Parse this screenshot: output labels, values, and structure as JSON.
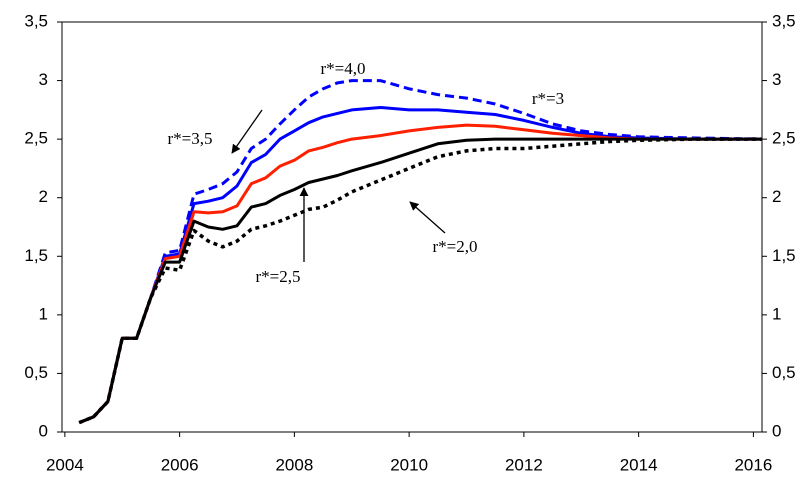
{
  "chart_data": {
    "type": "line",
    "x": [
      2004.25,
      2004.5,
      2004.75,
      2005,
      2005.25,
      2005.5,
      2005.75,
      2006,
      2006.25,
      2006.5,
      2006.75,
      2007,
      2007.25,
      2007.5,
      2007.75,
      2008,
      2008.25,
      2008.5,
      2008.75,
      2009,
      2009.5,
      2010,
      2010.5,
      2011,
      2011.5,
      2012,
      2012.5,
      2013,
      2013.5,
      2014,
      2015,
      2016.25
    ],
    "series": [
      {
        "name": "r*=4,0",
        "color": "#0000ff",
        "dash": "dashed",
        "values": [
          0.08,
          0.13,
          0.26,
          0.8,
          0.8,
          1.15,
          1.53,
          1.55,
          2.03,
          2.07,
          2.12,
          2.22,
          2.42,
          2.5,
          2.63,
          2.75,
          2.86,
          2.93,
          2.98,
          3.0,
          3.0,
          2.93,
          2.88,
          2.85,
          2.8,
          2.72,
          2.63,
          2.57,
          2.54,
          2.52,
          2.51,
          2.5
        ]
      },
      {
        "name": "r*=3,5",
        "color": "#0000ff",
        "dash": "solid",
        "values": [
          0.08,
          0.13,
          0.26,
          0.8,
          0.8,
          1.15,
          1.5,
          1.52,
          1.95,
          1.97,
          2.0,
          2.1,
          2.3,
          2.37,
          2.5,
          2.57,
          2.64,
          2.69,
          2.72,
          2.75,
          2.77,
          2.75,
          2.75,
          2.73,
          2.71,
          2.66,
          2.6,
          2.55,
          2.52,
          2.51,
          2.5,
          2.5
        ]
      },
      {
        "name": "r*=3",
        "color": "#ff2000",
        "dash": "solid",
        "values": [
          0.08,
          0.13,
          0.26,
          0.8,
          0.8,
          1.15,
          1.48,
          1.5,
          1.88,
          1.87,
          1.88,
          1.93,
          2.12,
          2.17,
          2.27,
          2.32,
          2.4,
          2.43,
          2.47,
          2.5,
          2.53,
          2.57,
          2.6,
          2.62,
          2.61,
          2.58,
          2.55,
          2.53,
          2.51,
          2.5,
          2.5,
          2.5
        ]
      },
      {
        "name": "r*=2,5",
        "color": "#000000",
        "dash": "solid",
        "values": [
          0.08,
          0.13,
          0.26,
          0.8,
          0.8,
          1.15,
          1.45,
          1.45,
          1.8,
          1.75,
          1.73,
          1.76,
          1.92,
          1.95,
          2.02,
          2.07,
          2.13,
          2.16,
          2.19,
          2.23,
          2.3,
          2.38,
          2.46,
          2.49,
          2.5,
          2.5,
          2.5,
          2.5,
          2.5,
          2.5,
          2.5,
          2.5
        ]
      },
      {
        "name": "r*=2,0",
        "color": "#000000",
        "dash": "dotted",
        "values": [
          0.08,
          0.13,
          0.26,
          0.8,
          0.8,
          1.15,
          1.4,
          1.38,
          1.72,
          1.63,
          1.58,
          1.63,
          1.73,
          1.76,
          1.8,
          1.85,
          1.9,
          1.92,
          1.98,
          2.05,
          2.15,
          2.25,
          2.35,
          2.4,
          2.42,
          2.42,
          2.44,
          2.46,
          2.48,
          2.49,
          2.5,
          2.5
        ]
      }
    ],
    "xlim": [
      2003.95,
      2016.15
    ],
    "xticks": [
      2004,
      2006,
      2008,
      2010,
      2012,
      2014,
      2016
    ],
    "ylim": [
      0,
      3.5
    ],
    "yticks": [
      0,
      {
        "value": 0.5,
        "label": "0,5"
      },
      1,
      {
        "value": 1.5,
        "label": "1,5"
      },
      2,
      {
        "value": 2.5,
        "label": "2,5"
      },
      3,
      {
        "value": 3.5,
        "label": "3,5"
      }
    ],
    "y2lim": [
      0,
      3.5
    ],
    "y2ticks": [
      0,
      {
        "value": 0.5,
        "label": "0,5"
      },
      1,
      {
        "value": 1.5,
        "label": "1,5"
      },
      2,
      {
        "value": 2.5,
        "label": "2,5"
      },
      3,
      {
        "value": 3.5,
        "label": "3,5"
      }
    ]
  }
}
